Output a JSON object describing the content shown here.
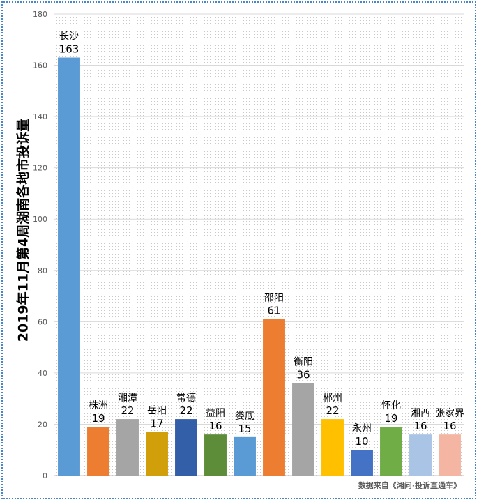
{
  "chart_data": {
    "type": "bar",
    "ylabel": "2019年11月第4周湖南各地市投诉量",
    "ylim": [
      0,
      180
    ],
    "yticks": [
      0,
      20,
      40,
      60,
      80,
      100,
      120,
      140,
      160,
      180
    ],
    "grid": true,
    "categories": [
      "长沙",
      "株洲",
      "湘潭",
      "岳阳",
      "常德",
      "益阳",
      "娄底",
      "邵阳",
      "衡阳",
      "郴州",
      "永州",
      "怀化",
      "湘西",
      "张家界"
    ],
    "values": [
      163,
      19,
      22,
      17,
      22,
      16,
      15,
      61,
      36,
      22,
      10,
      19,
      16,
      16
    ],
    "colors": [
      "#5b9bd5",
      "#ed7d31",
      "#a5a5a5",
      "#d09f0a",
      "#335ea8",
      "#5e8d39",
      "#5b9bd5",
      "#ed7d31",
      "#a5a5a5",
      "#ffc000",
      "#4472c4",
      "#70ad47",
      "#aac4e6",
      "#f4b6a2"
    ]
  },
  "source_note": "数据来自《湘问·投诉直通车》"
}
